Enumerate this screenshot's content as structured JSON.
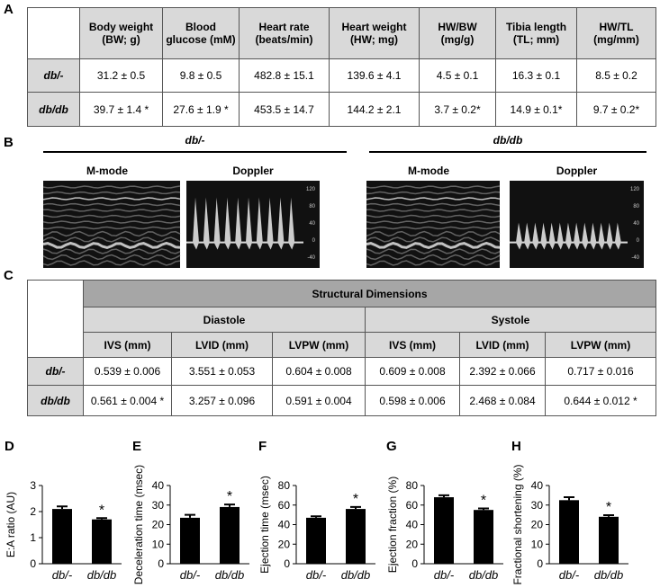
{
  "panel_labels": [
    "A",
    "B",
    "C"
  ],
  "table_a": {
    "header": [
      "Body weight (BW; g)",
      "Blood glucose (mM)",
      "Heart rate (beats/min)",
      "Heart weight (HW; mg)",
      "HW/BW (mg/g)",
      "Tibia length (TL; mm)",
      "HW/TL (mg/mm)"
    ],
    "rows": [
      [
        "db/-",
        "31.2 ± 0.5",
        "9.8 ± 0.5",
        "482.8 ± 15.1",
        "139.6 ± 4.1",
        "4.5 ± 0.1",
        "16.3 ± 0.1",
        "8.5 ± 0.2"
      ],
      [
        "db/db",
        "39.7 ± 1.4 *",
        "27.6 ± 1.9 *",
        "453.5 ± 14.7",
        "144.2 ± 2.1",
        "3.7 ± 0.2*",
        "14.9 ± 0.1*",
        "9.7 ± 0.2*"
      ]
    ]
  },
  "echo": {
    "groups": [
      {
        "title": "db/-",
        "views": [
          "M-mode",
          "Doppler"
        ],
        "doppler_scale": [
          120,
          80,
          40,
          0,
          -40
        ]
      },
      {
        "title": "db/db",
        "views": [
          "M-mode",
          "Doppler"
        ],
        "doppler_scale": [
          120,
          80,
          40,
          0,
          -40
        ]
      }
    ]
  },
  "table_c": {
    "title": "Structural Dimensions",
    "phases": [
      "Diastole",
      "Systole"
    ],
    "columns": [
      "IVS (mm)",
      "LVID (mm)",
      "LVPW (mm)",
      "IVS (mm)",
      "LVID (mm)",
      "LVPW (mm)"
    ],
    "rows": [
      [
        "db/-",
        "0.539 ± 0.006",
        "3.551 ± 0.053",
        "0.604 ± 0.008",
        "0.609 ± 0.008",
        "2.392 ± 0.066",
        "0.717 ± 0.016"
      ],
      [
        "db/db",
        "0.561 ± 0.004 *",
        "3.257 ± 0.096",
        "0.591 ± 0.004",
        "0.598 ± 0.006",
        "2.468 ± 0.084",
        "0.644 ± 0.012 *"
      ]
    ]
  },
  "chart_data": [
    {
      "type": "bar",
      "panel": "D",
      "y_label": "E:A ratio (AU)",
      "categories": [
        "db/-",
        "db/db"
      ],
      "values": [
        2.1,
        1.7
      ],
      "errors": [
        0.1,
        0.05
      ],
      "markers": [
        null,
        "*"
      ],
      "ylim": [
        0,
        3
      ],
      "yticks": [
        0,
        1,
        2,
        3
      ],
      "color": "#000000"
    },
    {
      "type": "bar",
      "panel": "E",
      "y_label": "Deceleration time (msec)",
      "categories": [
        "db/-",
        "db/db"
      ],
      "values": [
        23.5,
        29
      ],
      "errors": [
        1.5,
        1.3
      ],
      "markers": [
        null,
        "*"
      ],
      "ylim": [
        0,
        40
      ],
      "yticks": [
        0,
        10,
        20,
        30,
        40
      ],
      "color": "#000000"
    },
    {
      "type": "bar",
      "panel": "F",
      "y_label": "Ejection time (msec)",
      "categories": [
        "db/-",
        "db/db"
      ],
      "values": [
        47,
        56
      ],
      "errors": [
        1.5,
        2
      ],
      "markers": [
        null,
        "*"
      ],
      "ylim": [
        0,
        80
      ],
      "yticks": [
        0,
        20,
        40,
        60,
        80
      ],
      "color": "#000000"
    },
    {
      "type": "bar",
      "panel": "G",
      "y_label": "Ejection fraction (%)",
      "categories": [
        "db/-",
        "db/db"
      ],
      "values": [
        68,
        55
      ],
      "errors": [
        2,
        1.5
      ],
      "markers": [
        null,
        "*"
      ],
      "ylim": [
        0,
        80
      ],
      "yticks": [
        0,
        20,
        40,
        60,
        80
      ],
      "color": "#000000"
    },
    {
      "type": "bar",
      "panel": "H",
      "y_label": "Fractional shortening (%)",
      "categories": [
        "db/-",
        "db/db"
      ],
      "values": [
        32.5,
        24
      ],
      "errors": [
        1.5,
        0.8
      ],
      "markers": [
        null,
        "*"
      ],
      "ylim": [
        0,
        40
      ],
      "yticks": [
        0,
        10,
        20,
        30,
        40
      ],
      "color": "#000000"
    }
  ]
}
